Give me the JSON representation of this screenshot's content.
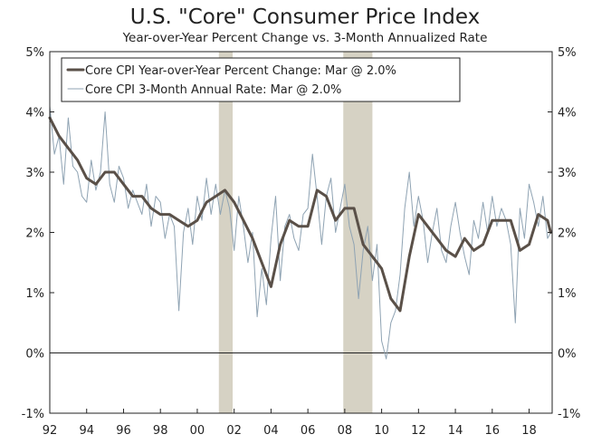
{
  "chart_data": {
    "type": "line",
    "title": "U.S. \"Core\" Consumer Price Index",
    "subtitle": "Year-over-Year Percent Change vs. 3-Month Annualized Rate",
    "xlabel": "",
    "ylabel": "",
    "xlim": [
      1992.0,
      2019.25
    ],
    "ylim": [
      -1,
      5
    ],
    "y_ticks": [
      -1,
      0,
      1,
      2,
      3,
      4,
      5
    ],
    "y_tick_labels": [
      "-1%",
      "0%",
      "1%",
      "2%",
      "3%",
      "4%",
      "5%"
    ],
    "x_ticks": [
      1992,
      1994,
      1996,
      1998,
      2000,
      2002,
      2004,
      2006,
      2008,
      2010,
      2012,
      2014,
      2016,
      2018
    ],
    "x_tick_labels": [
      "92",
      "94",
      "96",
      "98",
      "00",
      "02",
      "04",
      "06",
      "08",
      "10",
      "12",
      "14",
      "16",
      "18"
    ],
    "zero_line": 0,
    "recessions": [
      [
        2001.17,
        2001.92
      ],
      [
        2007.92,
        2009.5
      ]
    ],
    "recession_color": "#d6d2c4",
    "legend_position": "top-left",
    "series": [
      {
        "name": "Core CPI Year-over-Year Percent Change: Mar @ 2.0%",
        "color": "#5a5048",
        "width": 3,
        "x": [
          1992.0,
          1992.5,
          1993.0,
          1993.5,
          1994.0,
          1994.5,
          1995.0,
          1995.5,
          1996.0,
          1996.5,
          1997.0,
          1997.5,
          1998.0,
          1998.5,
          1999.0,
          1999.5,
          2000.0,
          2000.5,
          2001.0,
          2001.5,
          2002.0,
          2002.5,
          2003.0,
          2003.5,
          2004.0,
          2004.5,
          2005.0,
          2005.5,
          2006.0,
          2006.5,
          2007.0,
          2007.5,
          2008.0,
          2008.5,
          2009.0,
          2009.5,
          2010.0,
          2010.5,
          2011.0,
          2011.5,
          2012.0,
          2012.5,
          2013.0,
          2013.5,
          2014.0,
          2014.5,
          2015.0,
          2015.5,
          2016.0,
          2016.5,
          2017.0,
          2017.5,
          2018.0,
          2018.5,
          2019.0,
          2019.17
        ],
        "values": [
          3.9,
          3.6,
          3.4,
          3.2,
          2.9,
          2.8,
          3.0,
          3.0,
          2.8,
          2.6,
          2.6,
          2.4,
          2.3,
          2.3,
          2.2,
          2.1,
          2.2,
          2.5,
          2.6,
          2.7,
          2.5,
          2.2,
          1.9,
          1.5,
          1.1,
          1.8,
          2.2,
          2.1,
          2.1,
          2.7,
          2.6,
          2.2,
          2.4,
          2.4,
          1.8,
          1.6,
          1.4,
          0.9,
          0.7,
          1.6,
          2.3,
          2.1,
          1.9,
          1.7,
          1.6,
          1.9,
          1.7,
          1.8,
          2.2,
          2.2,
          2.2,
          1.7,
          1.8,
          2.3,
          2.2,
          2.0
        ]
      },
      {
        "name": "Core CPI 3-Month Annual Rate: Mar @ 2.0%",
        "color": "#8fa3b3",
        "width": 1,
        "x": [
          1992.0,
          1992.25,
          1992.5,
          1992.75,
          1993.0,
          1993.25,
          1993.5,
          1993.75,
          1994.0,
          1994.25,
          1994.5,
          1994.75,
          1995.0,
          1995.25,
          1995.5,
          1995.75,
          1996.0,
          1996.25,
          1996.5,
          1996.75,
          1997.0,
          1997.25,
          1997.5,
          1997.75,
          1998.0,
          1998.25,
          1998.5,
          1998.75,
          1999.0,
          1999.25,
          1999.5,
          1999.75,
          2000.0,
          2000.25,
          2000.5,
          2000.75,
          2001.0,
          2001.25,
          2001.5,
          2001.75,
          2002.0,
          2002.25,
          2002.5,
          2002.75,
          2003.0,
          2003.25,
          2003.5,
          2003.75,
          2004.0,
          2004.25,
          2004.5,
          2004.75,
          2005.0,
          2005.25,
          2005.5,
          2005.75,
          2006.0,
          2006.25,
          2006.5,
          2006.75,
          2007.0,
          2007.25,
          2007.5,
          2007.75,
          2008.0,
          2008.25,
          2008.5,
          2008.75,
          2009.0,
          2009.25,
          2009.5,
          2009.75,
          2010.0,
          2010.25,
          2010.5,
          2010.75,
          2011.0,
          2011.25,
          2011.5,
          2011.75,
          2012.0,
          2012.25,
          2012.5,
          2012.75,
          2013.0,
          2013.25,
          2013.5,
          2013.75,
          2014.0,
          2014.25,
          2014.5,
          2014.75,
          2015.0,
          2015.25,
          2015.5,
          2015.75,
          2016.0,
          2016.25,
          2016.5,
          2016.75,
          2017.0,
          2017.25,
          2017.5,
          2017.75,
          2018.0,
          2018.25,
          2018.5,
          2018.75,
          2019.0,
          2019.17
        ],
        "values": [
          4.1,
          3.3,
          3.6,
          2.8,
          3.9,
          3.1,
          3.0,
          2.6,
          2.5,
          3.2,
          2.7,
          3.0,
          4.0,
          2.8,
          2.5,
          3.1,
          2.9,
          2.4,
          2.7,
          2.5,
          2.3,
          2.8,
          2.1,
          2.6,
          2.5,
          1.9,
          2.3,
          2.1,
          0.7,
          2.0,
          2.4,
          1.8,
          2.6,
          2.2,
          2.9,
          2.3,
          2.8,
          2.3,
          2.7,
          2.4,
          1.7,
          2.6,
          2.1,
          1.5,
          2.0,
          0.6,
          1.4,
          0.8,
          1.9,
          2.6,
          1.2,
          2.1,
          2.3,
          1.9,
          1.7,
          2.3,
          2.4,
          3.3,
          2.6,
          1.8,
          2.6,
          2.9,
          2.0,
          2.4,
          2.8,
          2.1,
          1.8,
          0.9,
          1.7,
          2.1,
          1.2,
          1.8,
          0.2,
          -0.1,
          0.5,
          0.7,
          1.3,
          2.4,
          3.0,
          2.1,
          2.6,
          2.2,
          1.5,
          2.0,
          2.4,
          1.7,
          1.5,
          2.1,
          2.5,
          2.0,
          1.6,
          1.3,
          2.2,
          1.9,
          2.5,
          2.0,
          2.6,
          2.1,
          2.4,
          2.2,
          1.8,
          0.5,
          2.4,
          1.9,
          2.8,
          2.5,
          2.1,
          2.6,
          1.9,
          2.0
        ]
      }
    ]
  },
  "colors": {
    "axis": "#222222",
    "background": "#ffffff"
  }
}
